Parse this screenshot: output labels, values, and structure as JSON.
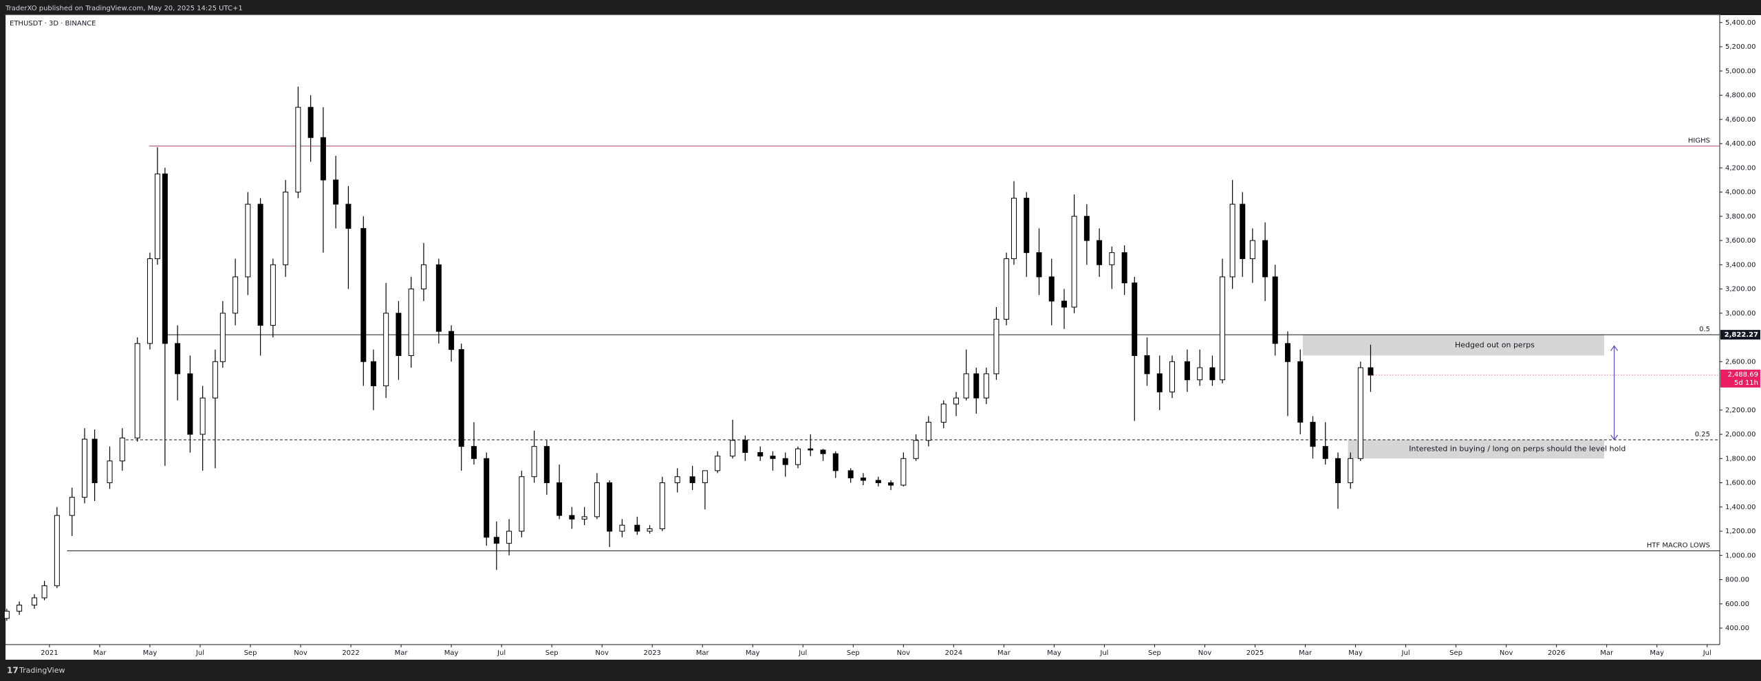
{
  "header": {
    "publisher": "TraderXO published on TradingView.com, May 20, 2025 14:25 UTC+1"
  },
  "footer": {
    "brand": "TradingView"
  },
  "chart_data": {
    "type": "candlestick",
    "title": "ETHUSDT · 3D · BINANCE",
    "up_color": "#ffffff",
    "down_color": "#000000",
    "xlim": [
      -1.75,
      66.5
    ],
    "ylim": [
      264,
      5461
    ],
    "xticks": [
      {
        "value": 0,
        "label": "2021"
      },
      {
        "value": 2,
        "label": "Mar"
      },
      {
        "value": 4,
        "label": "May"
      },
      {
        "value": 6,
        "label": "Jul"
      },
      {
        "value": 8,
        "label": "Sep"
      },
      {
        "value": 10,
        "label": "Nov"
      },
      {
        "value": 12,
        "label": "2022"
      },
      {
        "value": 14,
        "label": "Mar"
      },
      {
        "value": 16,
        "label": "May"
      },
      {
        "value": 18,
        "label": "Jul"
      },
      {
        "value": 20,
        "label": "Sep"
      },
      {
        "value": 22,
        "label": "Nov"
      },
      {
        "value": 24,
        "label": "2023"
      },
      {
        "value": 26,
        "label": "Mar"
      },
      {
        "value": 28,
        "label": "May"
      },
      {
        "value": 30,
        "label": "Jul"
      },
      {
        "value": 32,
        "label": "Sep"
      },
      {
        "value": 34,
        "label": "Nov"
      },
      {
        "value": 36,
        "label": "2024"
      },
      {
        "value": 38,
        "label": "Mar"
      },
      {
        "value": 40,
        "label": "May"
      },
      {
        "value": 42,
        "label": "Jul"
      },
      {
        "value": 44,
        "label": "Sep"
      },
      {
        "value": 46,
        "label": "Nov"
      },
      {
        "value": 48,
        "label": "2025"
      },
      {
        "value": 50,
        "label": "Mar"
      },
      {
        "value": 52,
        "label": "May"
      },
      {
        "value": 54,
        "label": "Jul"
      },
      {
        "value": 56,
        "label": "Sep"
      },
      {
        "value": 58,
        "label": "Nov"
      },
      {
        "value": 60,
        "label": "2026"
      },
      {
        "value": 62,
        "label": "Mar"
      },
      {
        "value": 64,
        "label": "May"
      },
      {
        "value": 66,
        "label": "Jul"
      }
    ],
    "yticks": [
      {
        "value": 400,
        "label": "400.00"
      },
      {
        "value": 600,
        "label": "600.00"
      },
      {
        "value": 800,
        "label": "800.00"
      },
      {
        "value": 1000,
        "label": "1,000.00"
      },
      {
        "value": 1200,
        "label": "1,200.00"
      },
      {
        "value": 1400,
        "label": "1,400.00"
      },
      {
        "value": 1600,
        "label": "1,600.00"
      },
      {
        "value": 1800,
        "label": "1,800.00"
      },
      {
        "value": 2000,
        "label": "2,000.00"
      },
      {
        "value": 2200,
        "label": "2,200.00"
      },
      {
        "value": 2600,
        "label": "2,600.00"
      },
      {
        "value": 3000,
        "label": "3,000.00"
      },
      {
        "value": 3200,
        "label": "3,200.00"
      },
      {
        "value": 3400,
        "label": "3,400.00"
      },
      {
        "value": 3600,
        "label": "3,600.00"
      },
      {
        "value": 3800,
        "label": "3,800.00"
      },
      {
        "value": 4000,
        "label": "4,000.00"
      },
      {
        "value": 4200,
        "label": "4,200.00"
      },
      {
        "value": 4400,
        "label": "4,400.00"
      },
      {
        "value": 4600,
        "label": "4,600.00"
      },
      {
        "value": 4800,
        "label": "4,800.00"
      },
      {
        "value": 5000,
        "label": "5,000.00"
      },
      {
        "value": 5200,
        "label": "5,200.00"
      },
      {
        "value": 5400,
        "label": "5,400.00"
      }
    ],
    "x": [
      -1.7,
      -1.2,
      -0.6,
      -0.2,
      0.3,
      0.9,
      1.4,
      1.8,
      2.4,
      2.9,
      3.5,
      4.0,
      4.3,
      4.6,
      5.1,
      5.6,
      6.1,
      6.6,
      6.9,
      7.4,
      7.9,
      8.4,
      8.9,
      9.4,
      9.9,
      10.4,
      10.9,
      11.4,
      11.9,
      12.5,
      12.9,
      13.4,
      13.9,
      14.4,
      14.9,
      15.5,
      16.0,
      16.4,
      16.9,
      17.4,
      17.8,
      18.3,
      18.8,
      19.3,
      19.8,
      20.3,
      20.8,
      21.3,
      21.8,
      22.3,
      22.8,
      23.4,
      23.9,
      24.4,
      25.0,
      25.6,
      26.1,
      26.6,
      27.2,
      27.7,
      28.3,
      28.8,
      29.3,
      29.8,
      30.3,
      30.8,
      31.3,
      31.9,
      32.4,
      33.0,
      33.5,
      34.0,
      34.5,
      35.0,
      35.6,
      36.1,
      36.5,
      36.9,
      37.3,
      37.7,
      38.1,
      38.4,
      38.9,
      39.4,
      39.9,
      40.4,
      40.8,
      41.3,
      41.8,
      42.3,
      42.8,
      43.2,
      43.7,
      44.2,
      44.7,
      45.3,
      45.8,
      46.3,
      46.7,
      47.1,
      47.5,
      47.9,
      48.4,
      48.8,
      49.3,
      49.8,
      50.3,
      50.8,
      51.3,
      51.8,
      52.2,
      52.6
    ],
    "open": [
      480,
      540,
      590,
      650,
      750,
      1330,
      1480,
      1960,
      1600,
      1780,
      1970,
      2750,
      3450,
      4150,
      2750,
      2500,
      2000,
      2300,
      2600,
      3000,
      3300,
      3900,
      2900,
      3400,
      4000,
      4700,
      4450,
      4100,
      3900,
      3700,
      2600,
      2400,
      3000,
      2650,
      3200,
      3400,
      2850,
      2700,
      1900,
      1800,
      1150,
      1100,
      1200,
      1650,
      1900,
      1600,
      1330,
      1300,
      1320,
      1600,
      1200,
      1250,
      1200,
      1220,
      1600,
      1650,
      1600,
      1700,
      1820,
      1950,
      1850,
      1820,
      1800,
      1750,
      1880,
      1870,
      1840,
      1700,
      1640,
      1620,
      1600,
      1580,
      1800,
      1950,
      2100,
      2250,
      2300,
      2500,
      2300,
      2500,
      2950,
      3450,
      3950,
      3500,
      3300,
      3100,
      3050,
      3800,
      3600,
      3400,
      3500,
      3250,
      2650,
      2500,
      2350,
      2600,
      2450,
      2550,
      2450,
      3300,
      3900,
      3450,
      3600,
      3300,
      2750,
      2600,
      2100,
      1900,
      1800,
      1600,
      1800,
      2550
    ],
    "high": [
      560,
      620,
      680,
      790,
      1400,
      1560,
      2050,
      2040,
      1900,
      2050,
      2800,
      3500,
      4370,
      4200,
      2900,
      2650,
      2400,
      2700,
      3100,
      3450,
      4000,
      3950,
      3450,
      4100,
      4870,
      4800,
      4700,
      4300,
      4050,
      3800,
      2700,
      3250,
      3100,
      3300,
      3580,
      3450,
      2900,
      2750,
      2100,
      1850,
      1280,
      1300,
      1700,
      2030,
      1950,
      1750,
      1400,
      1400,
      1680,
      1620,
      1300,
      1320,
      1250,
      1650,
      1720,
      1740,
      1700,
      1860,
      2120,
      1990,
      1900,
      1860,
      1850,
      1900,
      2000,
      1880,
      1860,
      1720,
      1680,
      1650,
      1620,
      1850,
      2000,
      2150,
      2280,
      2350,
      2700,
      2550,
      2550,
      3050,
      3500,
      4090,
      4000,
      3700,
      3450,
      3200,
      3980,
      3900,
      3700,
      3550,
      3560,
      3300,
      2800,
      2650,
      2650,
      2700,
      2700,
      2650,
      3450,
      4100,
      4000,
      3700,
      3750,
      3400,
      2850,
      2700,
      2150,
      2100,
      1850,
      1850,
      2600,
      2740
    ],
    "low": [
      460,
      510,
      560,
      630,
      730,
      1160,
      1430,
      1450,
      1550,
      1700,
      1940,
      2700,
      3400,
      1740,
      2280,
      1850,
      1700,
      1720,
      2550,
      2900,
      3150,
      2650,
      2800,
      3300,
      3950,
      4250,
      3500,
      3700,
      3200,
      2400,
      2200,
      2300,
      2450,
      2550,
      3100,
      2750,
      2600,
      1700,
      1750,
      1080,
      880,
      1000,
      1150,
      1600,
      1500,
      1300,
      1220,
      1250,
      1300,
      1070,
      1150,
      1170,
      1180,
      1200,
      1520,
      1540,
      1380,
      1680,
      1800,
      1780,
      1780,
      1700,
      1650,
      1720,
      1820,
      1780,
      1640,
      1600,
      1580,
      1570,
      1540,
      1570,
      1780,
      1900,
      2050,
      2150,
      2280,
      2170,
      2250,
      2450,
      2900,
      3400,
      3300,
      3150,
      2900,
      2870,
      3000,
      3400,
      3300,
      3200,
      3150,
      2110,
      2400,
      2200,
      2300,
      2350,
      2400,
      2400,
      2420,
      3200,
      3300,
      3250,
      3100,
      2650,
      2150,
      2000,
      1800,
      1750,
      1385,
      1550,
      1780,
      2350
    ],
    "close": [
      540,
      590,
      650,
      750,
      1330,
      1480,
      1960,
      1600,
      1780,
      1970,
      2750,
      3450,
      4150,
      2750,
      2500,
      2000,
      2300,
      2600,
      3000,
      3300,
      3900,
      2900,
      3400,
      4000,
      4700,
      4450,
      4100,
      3900,
      3700,
      2600,
      2400,
      3000,
      2650,
      3200,
      3400,
      2850,
      2700,
      1900,
      1800,
      1150,
      1100,
      1200,
      1650,
      1900,
      1600,
      1330,
      1300,
      1320,
      1600,
      1200,
      1250,
      1200,
      1220,
      1600,
      1650,
      1600,
      1700,
      1820,
      1950,
      1850,
      1820,
      1800,
      1750,
      1880,
      1870,
      1840,
      1700,
      1640,
      1620,
      1600,
      1580,
      1800,
      1950,
      2100,
      2250,
      2300,
      2500,
      2300,
      2500,
      2950,
      3450,
      3950,
      3500,
      3300,
      3100,
      3050,
      3800,
      3600,
      3400,
      3500,
      3250,
      2650,
      2500,
      2350,
      2600,
      2450,
      2550,
      2450,
      3300,
      3900,
      3450,
      3600,
      3300,
      2750,
      2600,
      2100,
      1900,
      1800,
      1600,
      1800,
      2550,
      2488.69
    ],
    "levels": [
      {
        "label": "HIGHS",
        "value": 4380,
        "from": 3.97,
        "color": "#b2546b",
        "style": "solid"
      },
      {
        "label": "0.5",
        "value": 2822.27,
        "value_label": "2,822.27",
        "from": 4.6,
        "color": "#131722",
        "style": "solid"
      },
      {
        "label": "0.25",
        "value": 1955,
        "from": 2.85,
        "color": "#131722",
        "style": "dashed"
      },
      {
        "label": "HTF MACRO LOWS",
        "value": 1038,
        "from": 0.7,
        "color": "#131722",
        "style": "solid"
      }
    ],
    "zones": [
      {
        "text": "Hedged out on perps",
        "top": 2822.27,
        "bottom": 2650,
        "x0": 49.9,
        "x1": 61.9,
        "color": "#d6d6d6"
      },
      {
        "text": "Interested in buying / long on perps should the level hold",
        "top": 1955,
        "bottom": 1800,
        "x0": 51.7,
        "x1": 61.9,
        "color": "#d6d6d6"
      }
    ],
    "arrow": {
      "x": 62.3,
      "from": 2730,
      "to": 1955,
      "color": "#5b4bb7"
    },
    "last_price": {
      "value": 2488.69,
      "label": "2,488.69",
      "countdown": "5d 11h",
      "color": "#e91e63"
    }
  }
}
